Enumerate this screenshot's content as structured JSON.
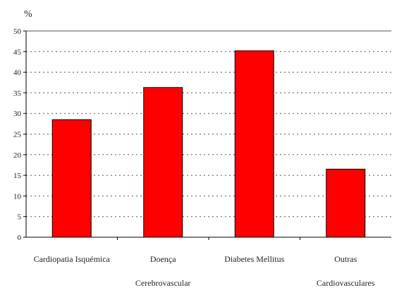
{
  "chart_data": {
    "type": "bar",
    "categories": [
      [
        "Cardiopatia Isquémica"
      ],
      [
        "Doença",
        "Cerebrovascular"
      ],
      [
        "Diabetes Mellitus"
      ],
      [
        "Outras",
        "Cardiovasculares"
      ]
    ],
    "values": [
      28.5,
      36.3,
      45.2,
      16.5
    ],
    "ylabel": "%",
    "ylim": [
      0,
      50
    ],
    "yticks": [
      "0",
      "5",
      "10",
      "15",
      "20",
      "25",
      "30",
      "35",
      "40",
      "45",
      "50"
    ],
    "grid": true,
    "legend": "none",
    "colors": {
      "bar": "#ff0000",
      "bar_stroke": "#000000",
      "grid": "#555555",
      "axis": "#000000"
    }
  }
}
